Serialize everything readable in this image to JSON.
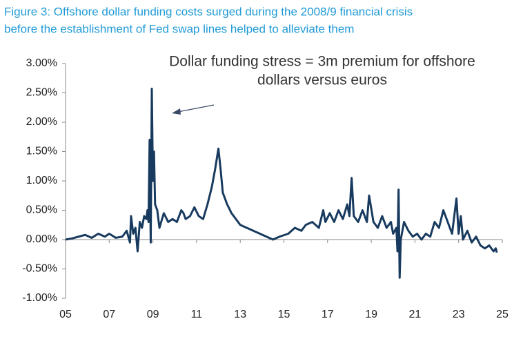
{
  "chart_data": {
    "type": "line",
    "title_lines": [
      "Figure 3: Offshore dollar funding costs surged during the 2008/9 financial crisis",
      "before the establishment of Fed swap lines helped to alleviate them"
    ],
    "annotation_lines": [
      "Dollar funding stress = 3m premium for offshore",
      "dollars versus euros"
    ],
    "x": [
      2005.0,
      2005.3,
      2005.6,
      2005.9,
      2006.2,
      2006.5,
      2006.8,
      2007.0,
      2007.3,
      2007.6,
      2007.8,
      2007.95,
      2008.0,
      2008.1,
      2008.2,
      2008.3,
      2008.4,
      2008.5,
      2008.6,
      2008.7,
      2008.75,
      2008.8,
      2008.85,
      2008.9,
      2008.95,
      2009.0,
      2009.05,
      2009.1,
      2009.2,
      2009.3,
      2009.5,
      2009.7,
      2009.9,
      2010.1,
      2010.3,
      2010.4,
      2010.5,
      2010.7,
      2010.9,
      2011.1,
      2011.3,
      2011.5,
      2011.7,
      2011.85,
      2012.0,
      2012.1,
      2012.2,
      2012.4,
      2012.6,
      2012.8,
      2013.0,
      2013.3,
      2013.6,
      2013.9,
      2014.2,
      2014.5,
      2014.8,
      2015.2,
      2015.5,
      2015.8,
      2016.0,
      2016.3,
      2016.6,
      2016.8,
      2016.9,
      2017.1,
      2017.3,
      2017.5,
      2017.7,
      2017.9,
      2018.0,
      2018.1,
      2018.2,
      2018.4,
      2018.6,
      2018.8,
      2018.9,
      2019.1,
      2019.3,
      2019.5,
      2019.7,
      2019.9,
      2020.0,
      2020.15,
      2020.2,
      2020.25,
      2020.3,
      2020.35,
      2020.5,
      2020.7,
      2020.9,
      2021.1,
      2021.3,
      2021.5,
      2021.7,
      2021.9,
      2022.1,
      2022.3,
      2022.5,
      2022.7,
      2022.9,
      2023.0,
      2023.1,
      2023.2,
      2023.4,
      2023.6,
      2023.8,
      2024.0,
      2024.2,
      2024.4,
      2024.6,
      2024.7,
      2024.75
    ],
    "series": [
      {
        "color": "#173a5e",
        "values": [
          0.0,
          0.02,
          0.05,
          0.08,
          0.03,
          0.1,
          0.05,
          0.1,
          0.03,
          0.05,
          0.15,
          -0.05,
          0.4,
          0.1,
          0.2,
          -0.2,
          0.3,
          0.2,
          0.4,
          0.35,
          0.5,
          0.3,
          1.7,
          -0.05,
          2.57,
          1.0,
          1.5,
          0.6,
          0.5,
          0.2,
          0.45,
          0.3,
          0.35,
          0.3,
          0.5,
          0.45,
          0.35,
          0.4,
          0.55,
          0.4,
          0.35,
          0.6,
          0.9,
          1.2,
          1.55,
          1.2,
          0.8,
          0.6,
          0.45,
          0.35,
          0.25,
          0.2,
          0.15,
          0.1,
          0.05,
          0.0,
          0.05,
          0.1,
          0.2,
          0.15,
          0.25,
          0.3,
          0.2,
          0.5,
          0.3,
          0.45,
          0.3,
          0.5,
          0.35,
          0.6,
          0.4,
          1.05,
          0.4,
          0.3,
          0.5,
          0.3,
          0.75,
          0.3,
          0.2,
          0.4,
          0.2,
          0.3,
          0.1,
          0.2,
          -0.2,
          0.85,
          -0.65,
          0.0,
          0.3,
          0.15,
          0.05,
          0.1,
          0.0,
          0.1,
          0.05,
          0.3,
          0.2,
          0.5,
          0.3,
          0.1,
          0.7,
          0.1,
          0.4,
          0.0,
          0.15,
          -0.05,
          0.05,
          -0.1,
          -0.15,
          -0.1,
          -0.2,
          -0.15,
          -0.22
        ]
      }
    ],
    "xlim": [
      2005,
      2025
    ],
    "xticks": [
      {
        "value": 2005,
        "label": "05"
      },
      {
        "value": 2007,
        "label": "07"
      },
      {
        "value": 2009,
        "label": "09"
      },
      {
        "value": 2011,
        "label": "11"
      },
      {
        "value": 2013,
        "label": "13"
      },
      {
        "value": 2015,
        "label": "15"
      },
      {
        "value": 2017,
        "label": "17"
      },
      {
        "value": 2019,
        "label": "19"
      },
      {
        "value": 2021,
        "label": "21"
      },
      {
        "value": 2023,
        "label": "23"
      },
      {
        "value": 2025,
        "label": "25"
      }
    ],
    "ylim": [
      -1,
      3
    ],
    "yticks": [
      {
        "value": 3,
        "label": "3.00%"
      },
      {
        "value": 2.5,
        "label": "2.50%"
      },
      {
        "value": 2,
        "label": "2.00%"
      },
      {
        "value": 1.5,
        "label": "1.50%"
      },
      {
        "value": 1,
        "label": "1.00%"
      },
      {
        "value": 0.5,
        "label": "0.50%"
      },
      {
        "value": 0,
        "label": "0.00%"
      },
      {
        "value": -0.5,
        "label": "-0.50%"
      },
      {
        "value": -1,
        "label": "-1.00%"
      }
    ],
    "grid": false
  }
}
